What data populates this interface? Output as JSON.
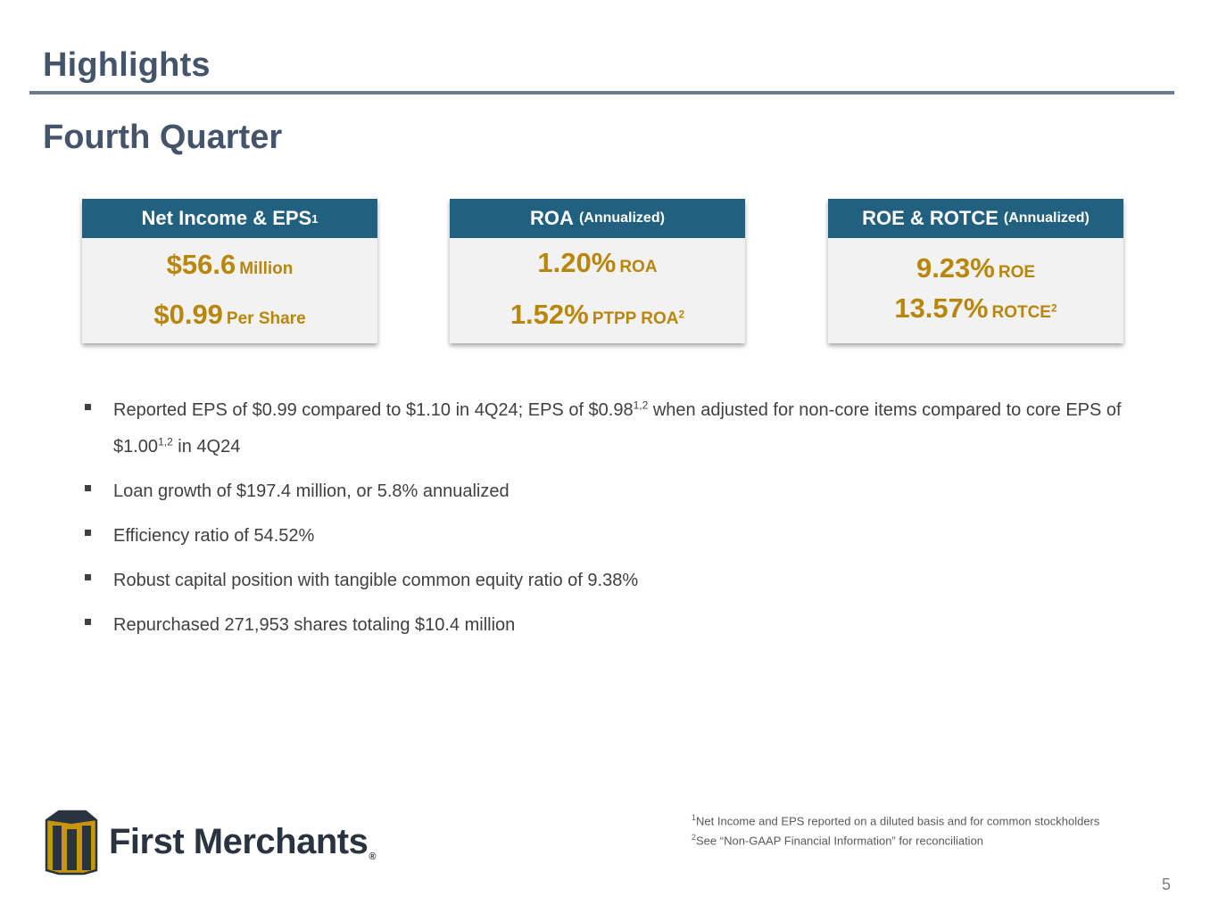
{
  "header": {
    "title": "Highlights",
    "subtitle": "Fourth Quarter"
  },
  "cards": [
    {
      "title": "Net Income & EPS",
      "title_sup": "1",
      "title_small": "",
      "line1_big": "$56.6",
      "line1_small": "Million",
      "line1_sup": "",
      "line2_big": "$0.99",
      "line2_small": "Per Share",
      "line2_sup": ""
    },
    {
      "title": "ROA",
      "title_sup": "",
      "title_small": "(Annualized)",
      "line1_big": "1.20%",
      "line1_small": "ROA",
      "line1_sup": "",
      "line2_big": "1.52%",
      "line2_small": "PTPP ROA",
      "line2_sup": "2"
    },
    {
      "title": "ROE & ROTCE",
      "title_sup": "",
      "title_small": "(Annualized)",
      "line1_big": "9.23%",
      "line1_small": "ROE",
      "line1_sup": "",
      "line2_big": "13.57%",
      "line2_small": "ROTCE",
      "line2_sup": "2"
    }
  ],
  "bullets": [
    {
      "parts": [
        "Reported EPS of $0.99 compared to $1.10 in 4Q24; EPS of $0.98",
        "1,2",
        " when adjusted for non-core items compared to core EPS of $1.00",
        "1,2",
        " in 4Q24"
      ]
    },
    {
      "text": "Loan growth of $197.4 million, or 5.8% annualized"
    },
    {
      "text": "Efficiency ratio of 54.52%"
    },
    {
      "text": "Robust capital position with tangible common equity ratio of 9.38%"
    },
    {
      "text": "Repurchased 271,953 shares totaling $10.4 million"
    }
  ],
  "logo": {
    "name": "First Merchants",
    "registered": "®"
  },
  "footnotes": [
    {
      "num": "1",
      "text": "Net Income and EPS reported on a diluted basis and for common stockholders"
    },
    {
      "num": "2",
      "text": "See “Non-GAAP Financial Information” for reconciliation"
    }
  ],
  "page_number": "5",
  "colors": {
    "title": "#44546A",
    "header_bar": "#22607F",
    "accent_gold": "#B8860B",
    "card_bg": "#F2F2F2",
    "rule": "#6B7A8F"
  },
  "icons": {
    "bullet": "square-bullet-icon",
    "logo": "first-merchants-logo-icon"
  }
}
